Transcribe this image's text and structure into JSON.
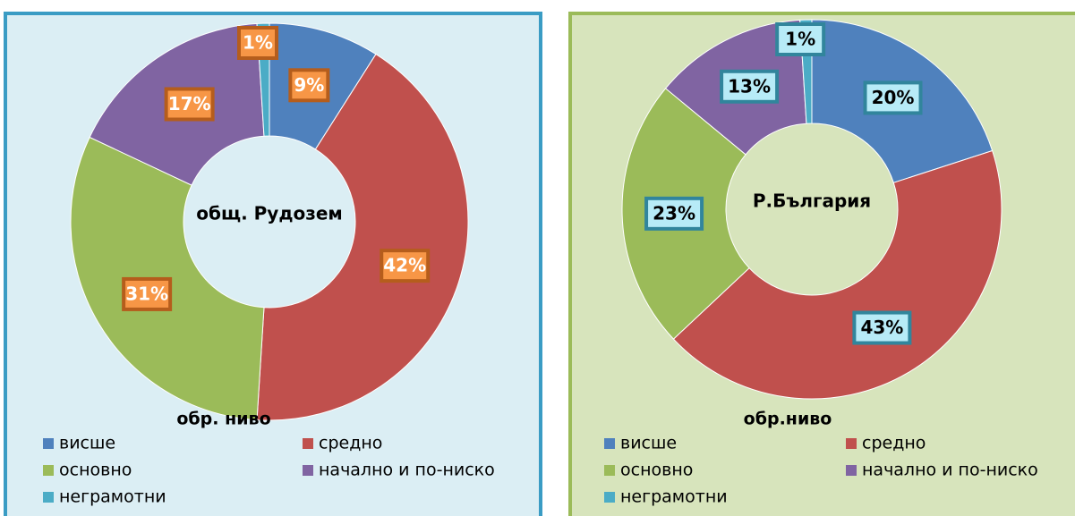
{
  "chart_data": [
    {
      "type": "pie",
      "title": "общ. Рудозем",
      "legend_title": "обр. ниво",
      "categories": [
        "висше",
        "средно",
        "основно",
        "начално и по-ниско",
        "неграмотни"
      ],
      "values": [
        9,
        42,
        31,
        17,
        1
      ],
      "value_labels": [
        "9%",
        "42%",
        "31%",
        "17%",
        "1%"
      ],
      "colors": [
        "#4f81bd",
        "#c0504d",
        "#9bbb59",
        "#8064a2",
        "#4bacc6"
      ]
    },
    {
      "type": "pie",
      "title": "Р.България",
      "legend_title": "обр.ниво",
      "categories": [
        "висше",
        "средно",
        "основно",
        "начално и по-ниско",
        "неграмотни"
      ],
      "values": [
        20,
        43,
        23,
        13,
        1
      ],
      "value_labels": [
        "20%",
        "43%",
        "23%",
        "13%",
        "1%"
      ],
      "colors": [
        "#4f81bd",
        "#c0504d",
        "#9bbb59",
        "#8064a2",
        "#4bacc6"
      ]
    }
  ]
}
